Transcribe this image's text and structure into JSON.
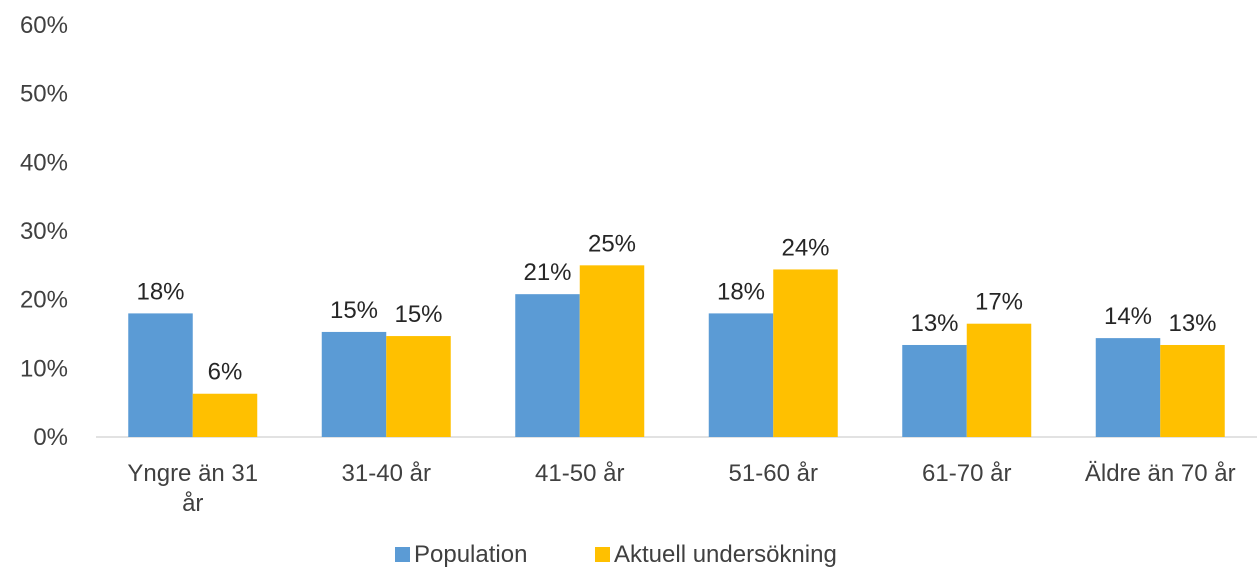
{
  "chart_data": {
    "type": "bar",
    "categories": [
      [
        "Yngre än 31",
        "år"
      ],
      [
        "31-40 år"
      ],
      [
        "41-50 år"
      ],
      [
        "51-60 år"
      ],
      [
        "61-70 år"
      ],
      [
        "Äldre än 70 år"
      ]
    ],
    "series": [
      {
        "name": "Population",
        "color": "#5B9BD5",
        "values": [
          18,
          15.3,
          20.8,
          18,
          13.4,
          14.4
        ],
        "labels": [
          "18%",
          "15%",
          "21%",
          "18%",
          "13%",
          "14%"
        ]
      },
      {
        "name": "Aktuell undersökning",
        "color": "#FFC000",
        "values": [
          6.3,
          14.7,
          25,
          24.4,
          16.5,
          13.4
        ],
        "labels": [
          "6%",
          "15%",
          "25%",
          "24%",
          "17%",
          "13%"
        ]
      }
    ],
    "ylim": [
      0,
      60
    ],
    "yticks": [
      "0%",
      "10%",
      "20%",
      "30%",
      "40%",
      "50%",
      "60%"
    ],
    "ytick_values": [
      0,
      10,
      20,
      30,
      40,
      50,
      60
    ],
    "grid": false,
    "legend": "bottom"
  }
}
